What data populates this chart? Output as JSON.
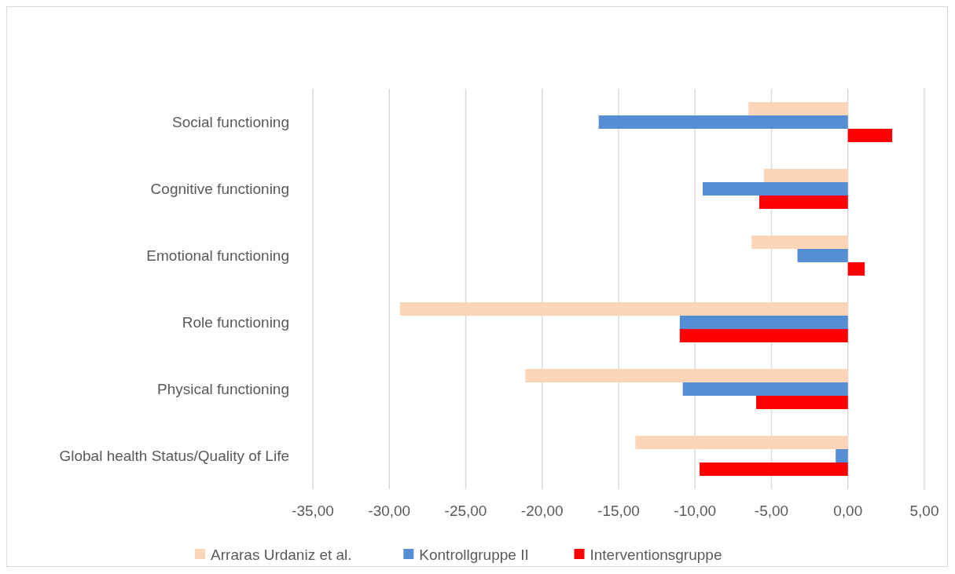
{
  "chart_data": {
    "type": "bar",
    "orientation": "horizontal",
    "categories": [
      "Social functioning",
      "Cognitive functioning",
      "Emotional functioning",
      "Role functioning",
      "Physical functioning",
      "Global health Status/Quality of Life"
    ],
    "series": [
      {
        "name": "Arraras Urdaniz et al.",
        "color": "#fbd5b5",
        "values": [
          -6.5,
          -5.5,
          -6.3,
          -29.3,
          -21.1,
          -13.9
        ]
      },
      {
        "name": "Kontrollgruppe II",
        "color": "#558ed5",
        "values": [
          -16.3,
          -9.5,
          -3.3,
          -11.0,
          -10.8,
          -0.8
        ]
      },
      {
        "name": "Interventionsgruppe",
        "color": "#ff0000",
        "values": [
          2.9,
          -5.8,
          1.1,
          -11.0,
          -6.0,
          -9.7
        ]
      }
    ],
    "xlim": [
      -35,
      5
    ],
    "xticks": [
      {
        "value": -35,
        "label": "-35,00"
      },
      {
        "value": -30,
        "label": "-30,00"
      },
      {
        "value": -25,
        "label": "-25,00"
      },
      {
        "value": -20,
        "label": "-20,00"
      },
      {
        "value": -15,
        "label": "-15,00"
      },
      {
        "value": -10,
        "label": "-10,00"
      },
      {
        "value": -5,
        "label": "-5,00"
      },
      {
        "value": 0,
        "label": "0,00"
      },
      {
        "value": 5,
        "label": "5,00"
      }
    ],
    "grid": "x",
    "legend": "bottom"
  }
}
